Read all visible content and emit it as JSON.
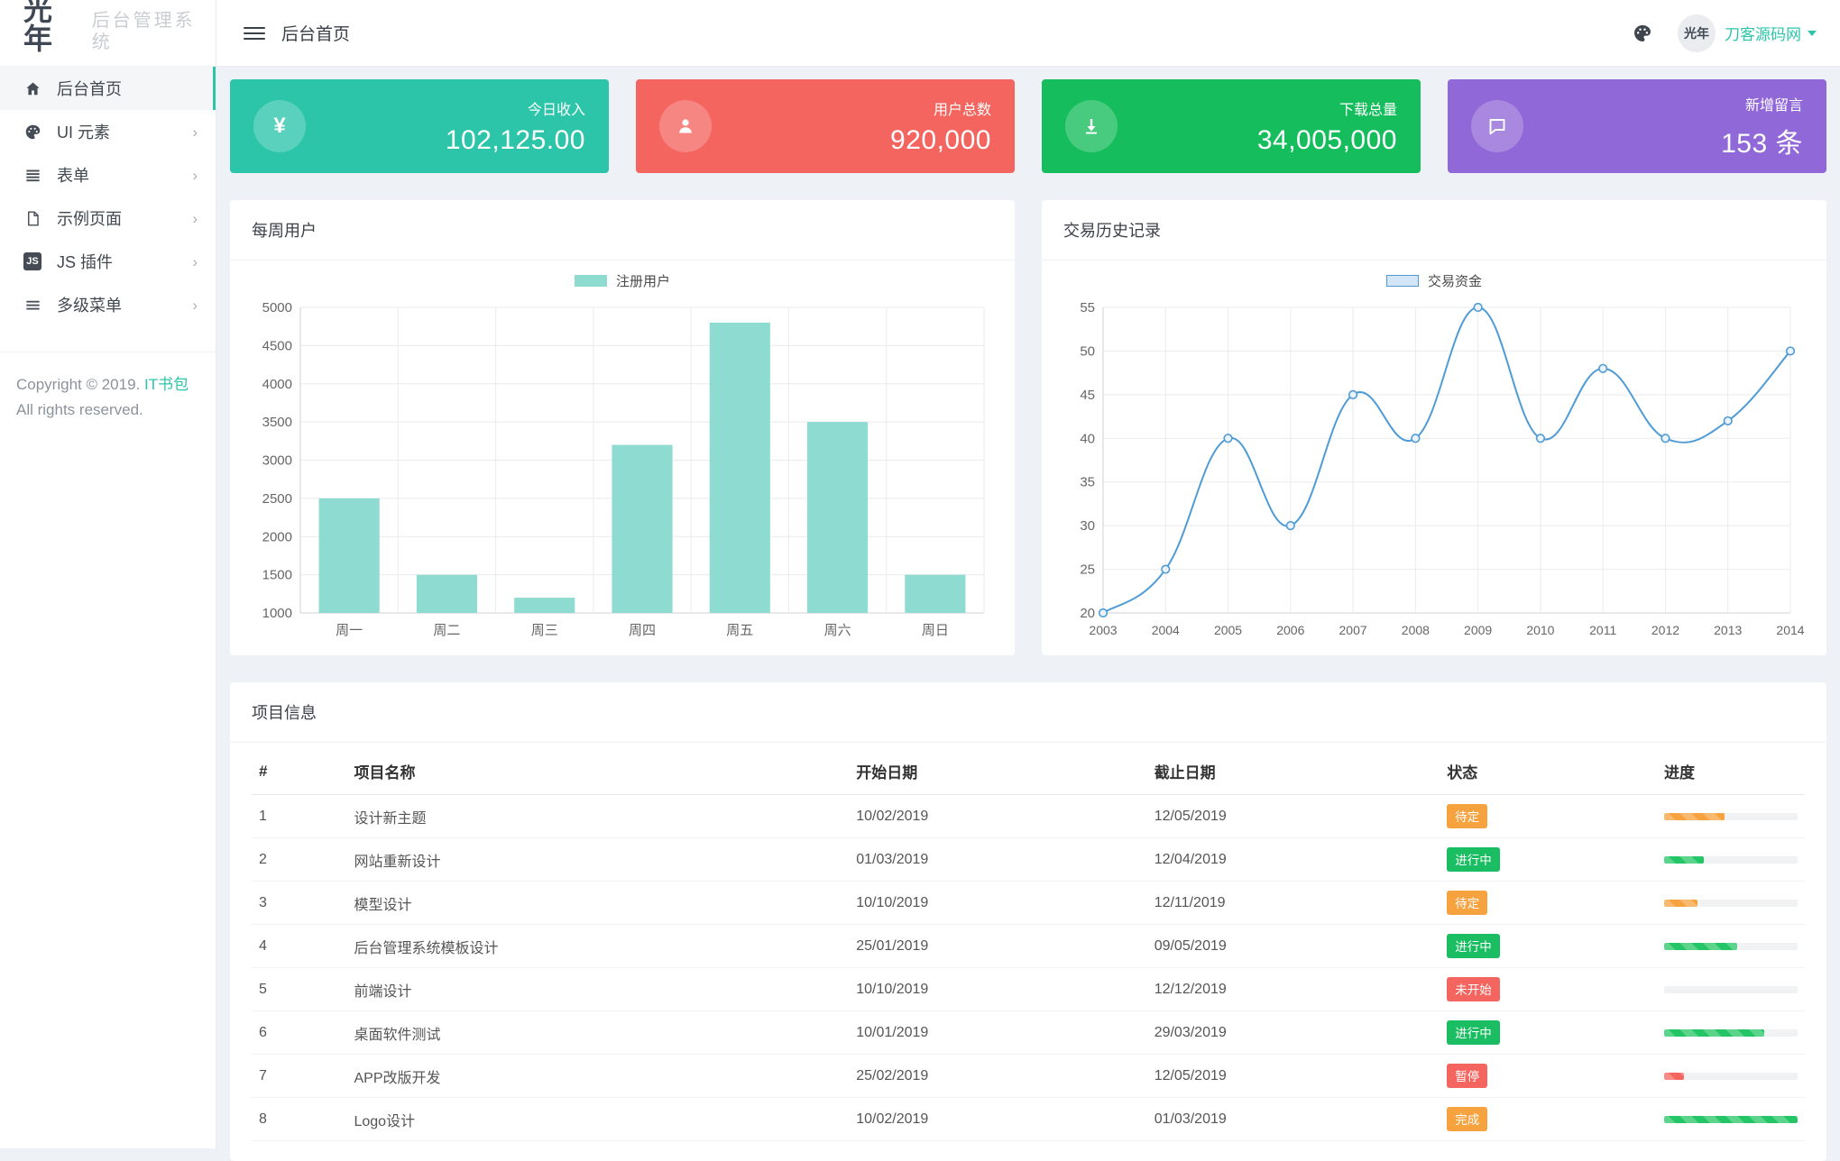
{
  "colors": {
    "accent": "#2cc5a9",
    "card_teal": "#2cc5a9",
    "card_red": "#f4655f",
    "card_green": "#16bd5c",
    "card_purple": "#9168d8",
    "badge_orange": "#f6a23e",
    "badge_green": "#1abd61",
    "badge_red": "#f4655f",
    "progress_orange": "#f6a23e",
    "progress_green": "#24c566",
    "progress_red": "#f4655f",
    "bar_fill": "#8edcd1",
    "line_stroke": "#4f9bd5",
    "line_legend_fill": "#d3e6f8"
  },
  "brand": {
    "logo_mark": "光年",
    "logo_text": "后台管理系统"
  },
  "topbar": {
    "breadcrumb": "后台首页",
    "username": "刀客源码网",
    "avatar_text": "光年"
  },
  "sidebar": {
    "items": [
      {
        "key": "home",
        "label": "后台首页",
        "icon": "home-icon",
        "active": true,
        "expandable": false
      },
      {
        "key": "ui-elements",
        "label": "UI 元素",
        "icon": "palette-icon",
        "active": false,
        "expandable": true
      },
      {
        "key": "forms",
        "label": "表单",
        "icon": "form-icon",
        "active": false,
        "expandable": true
      },
      {
        "key": "pages",
        "label": "示例页面",
        "icon": "page-icon",
        "active": false,
        "expandable": true
      },
      {
        "key": "js-plugins",
        "label": "JS 插件",
        "icon": "js-icon",
        "active": false,
        "expandable": true
      },
      {
        "key": "multi-menu",
        "label": "多级菜单",
        "icon": "levels-icon",
        "active": false,
        "expandable": true
      }
    ],
    "copyright_prefix": "Copyright © 2019.",
    "copyright_brand": "IT书包",
    "copyright_suffix": "All rights reserved."
  },
  "stat_cards": [
    {
      "key": "income",
      "label": "今日收入",
      "value": "102,125.00",
      "icon": "yen-icon",
      "color": "card_teal"
    },
    {
      "key": "users",
      "label": "用户总数",
      "value": "920,000",
      "icon": "user-icon",
      "color": "card_red"
    },
    {
      "key": "downloads",
      "label": "下载总量",
      "value": "34,005,000",
      "icon": "download-icon",
      "color": "card_green"
    },
    {
      "key": "messages",
      "label": "新增留言",
      "value": "153 条",
      "icon": "comment-icon",
      "color": "card_purple"
    }
  ],
  "chart_data": [
    {
      "type": "bar",
      "title": "每周用户",
      "legend": "注册用户",
      "categories": [
        "周一",
        "周二",
        "周三",
        "周四",
        "周五",
        "周六",
        "周日"
      ],
      "values": [
        2500,
        1500,
        1200,
        3200,
        4800,
        3500,
        1500
      ],
      "ylim": [
        1000,
        5000
      ],
      "ytick_step": 500,
      "grid": true,
      "legend_position": "top-center",
      "bar_color": "#8edcd1"
    },
    {
      "type": "line",
      "title": "交易历史记录",
      "legend": "交易资金",
      "x": [
        2003,
        2004,
        2005,
        2006,
        2007,
        2008,
        2009,
        2010,
        2011,
        2012,
        2013,
        2014
      ],
      "values": [
        20,
        25,
        40,
        30,
        45,
        40,
        55,
        40,
        48,
        40,
        42,
        50
      ],
      "ylim": [
        20,
        55
      ],
      "ytick_step": 5,
      "grid": true,
      "legend_position": "top-center",
      "line_color": "#4f9bd5",
      "smooth": true
    }
  ],
  "table": {
    "title": "项目信息",
    "columns": [
      "#",
      "项目名称",
      "开始日期",
      "截止日期",
      "状态",
      "进度"
    ],
    "rows": [
      {
        "id": "1",
        "name": "设计新主题",
        "start": "10/02/2019",
        "end": "12/05/2019",
        "status": "待定",
        "status_color": "badge_orange",
        "progress": 45,
        "progress_color": "progress_orange"
      },
      {
        "id": "2",
        "name": "网站重新设计",
        "start": "01/03/2019",
        "end": "12/04/2019",
        "status": "进行中",
        "status_color": "badge_green",
        "progress": 30,
        "progress_color": "progress_green"
      },
      {
        "id": "3",
        "name": "模型设计",
        "start": "10/10/2019",
        "end": "12/11/2019",
        "status": "待定",
        "status_color": "badge_orange",
        "progress": 25,
        "progress_color": "progress_orange"
      },
      {
        "id": "4",
        "name": "后台管理系统模板设计",
        "start": "25/01/2019",
        "end": "09/05/2019",
        "status": "进行中",
        "status_color": "badge_green",
        "progress": 55,
        "progress_color": "progress_green"
      },
      {
        "id": "5",
        "name": "前端设计",
        "start": "10/10/2019",
        "end": "12/12/2019",
        "status": "未开始",
        "status_color": "badge_red",
        "progress": 0,
        "progress_color": "progress_green"
      },
      {
        "id": "6",
        "name": "桌面软件测试",
        "start": "10/01/2019",
        "end": "29/03/2019",
        "status": "进行中",
        "status_color": "badge_green",
        "progress": 75,
        "progress_color": "progress_green"
      },
      {
        "id": "7",
        "name": "APP改版开发",
        "start": "25/02/2019",
        "end": "12/05/2019",
        "status": "暂停",
        "status_color": "badge_red",
        "progress": 15,
        "progress_color": "progress_red"
      },
      {
        "id": "8",
        "name": "Logo设计",
        "start": "10/02/2019",
        "end": "01/03/2019",
        "status": "完成",
        "status_color": "badge_orange",
        "progress": 100,
        "progress_color": "progress_green"
      }
    ]
  }
}
